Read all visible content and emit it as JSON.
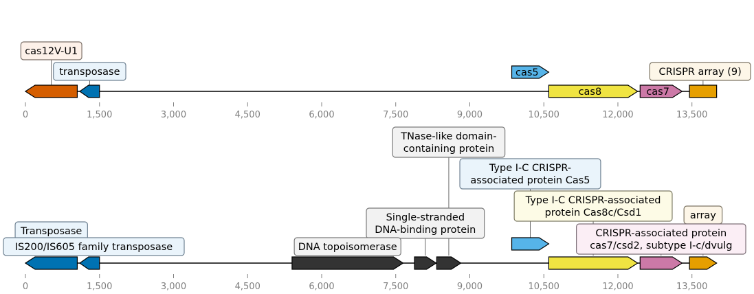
{
  "axis": {
    "min": 0,
    "max": 14200,
    "ticks": [
      0,
      1500,
      3000,
      4500,
      6000,
      7500,
      9000,
      10500,
      12000,
      13500
    ],
    "tick_labels": [
      "0",
      "1,500",
      "3,000",
      "4,500",
      "6,000",
      "7,500",
      "9,000",
      "10,500",
      "12,000",
      "13,500"
    ]
  },
  "tracks": [
    {
      "id": "top",
      "features": [
        {
          "start": 0,
          "end": 1050,
          "strand": -1,
          "color": "#d55e00",
          "label": ""
        },
        {
          "start": 1100,
          "end": 1500,
          "strand": -1,
          "color": "#0072b2",
          "label": ""
        },
        {
          "start": 9850,
          "end": 10600,
          "strand": 1,
          "color": "#56b4e9",
          "label": "cas5",
          "inline": true,
          "raised": true
        },
        {
          "start": 10600,
          "end": 12400,
          "strand": 1,
          "color": "#f0e442",
          "label": "cas8",
          "inline": true
        },
        {
          "start": 12450,
          "end": 13300,
          "strand": 1,
          "color": "#cc79a7",
          "label": "cas7",
          "inline": true
        },
        {
          "start": 13450,
          "end": 14000,
          "strand": 0,
          "color": "#e69f00",
          "label": ""
        }
      ],
      "callouts": [
        {
          "text": [
            "cas12V-U1"
          ],
          "at": 525,
          "fill": "#fdf1e9",
          "stroke": "#7a6e66"
        },
        {
          "text": [
            "transposase"
          ],
          "at": 1300,
          "fill": "#eaf4fb",
          "stroke": "#6f8292"
        },
        {
          "text": [
            "CRISPR array (9)"
          ],
          "at": 13725,
          "fill": "#fdf6e8",
          "stroke": "#7c7463"
        }
      ]
    },
    {
      "id": "bottom",
      "features": [
        {
          "start": 0,
          "end": 1050,
          "strand": -1,
          "color": "#0072b2",
          "label": ""
        },
        {
          "start": 1100,
          "end": 1500,
          "strand": -1,
          "color": "#0072b2",
          "label": ""
        },
        {
          "start": 5400,
          "end": 7650,
          "strand": 1,
          "color": "#333333",
          "label": ""
        },
        {
          "start": 7880,
          "end": 8320,
          "strand": 1,
          "color": "#333333",
          "label": ""
        },
        {
          "start": 8330,
          "end": 8820,
          "strand": 1,
          "color": "#333333",
          "label": ""
        },
        {
          "start": 9850,
          "end": 10600,
          "strand": 1,
          "color": "#56b4e9",
          "label": "",
          "raised": true
        },
        {
          "start": 10600,
          "end": 12400,
          "strand": 1,
          "color": "#f0e442",
          "label": ""
        },
        {
          "start": 12450,
          "end": 13300,
          "strand": 1,
          "color": "#cc79a7",
          "label": ""
        },
        {
          "start": 13450,
          "end": 14000,
          "strand": 1,
          "color": "#e69f00",
          "label": ""
        }
      ],
      "callouts": [
        {
          "text": [
            "TNase-like domain-",
            "containing protein"
          ],
          "at": 8575,
          "fill": "#f2f2f2",
          "stroke": "#7a7a7a"
        },
        {
          "text": [
            "Type I-C CRISPR-",
            "associated protein Cas5"
          ],
          "at": 10225,
          "fill": "#eaf4fb",
          "stroke": "#6f8292"
        },
        {
          "text": [
            "Single-stranded",
            "DNA-binding protein"
          ],
          "at": 8100,
          "fill": "#f2f2f2",
          "stroke": "#7a7a7a"
        },
        {
          "text": [
            "Type I-C CRISPR-associated",
            "protein Cas8c/Csd1"
          ],
          "at": 11500,
          "fill": "#fdfbe6",
          "stroke": "#7c7a63"
        },
        {
          "text": [
            "array"
          ],
          "at": 13725,
          "fill": "#fdf6e8",
          "stroke": "#7c7463"
        },
        {
          "text": [
            "Transposase"
          ],
          "at": 525,
          "fill": "#eaf4fb",
          "stroke": "#6f8292"
        },
        {
          "text": [
            "CRISPR-associated protein",
            "cas7/csd2, subtype I-c/dvulg"
          ],
          "at": 12875,
          "fill": "#fbeef5",
          "stroke": "#7c6f77"
        },
        {
          "text": [
            "IS200/IS605 family transposase"
          ],
          "at": 1300,
          "fill": "#eaf4fb",
          "stroke": "#6f8292"
        },
        {
          "text": [
            "DNA topoisomerase"
          ],
          "at": 6525,
          "fill": "#f2f2f2",
          "stroke": "#7a7a7a"
        }
      ]
    }
  ]
}
